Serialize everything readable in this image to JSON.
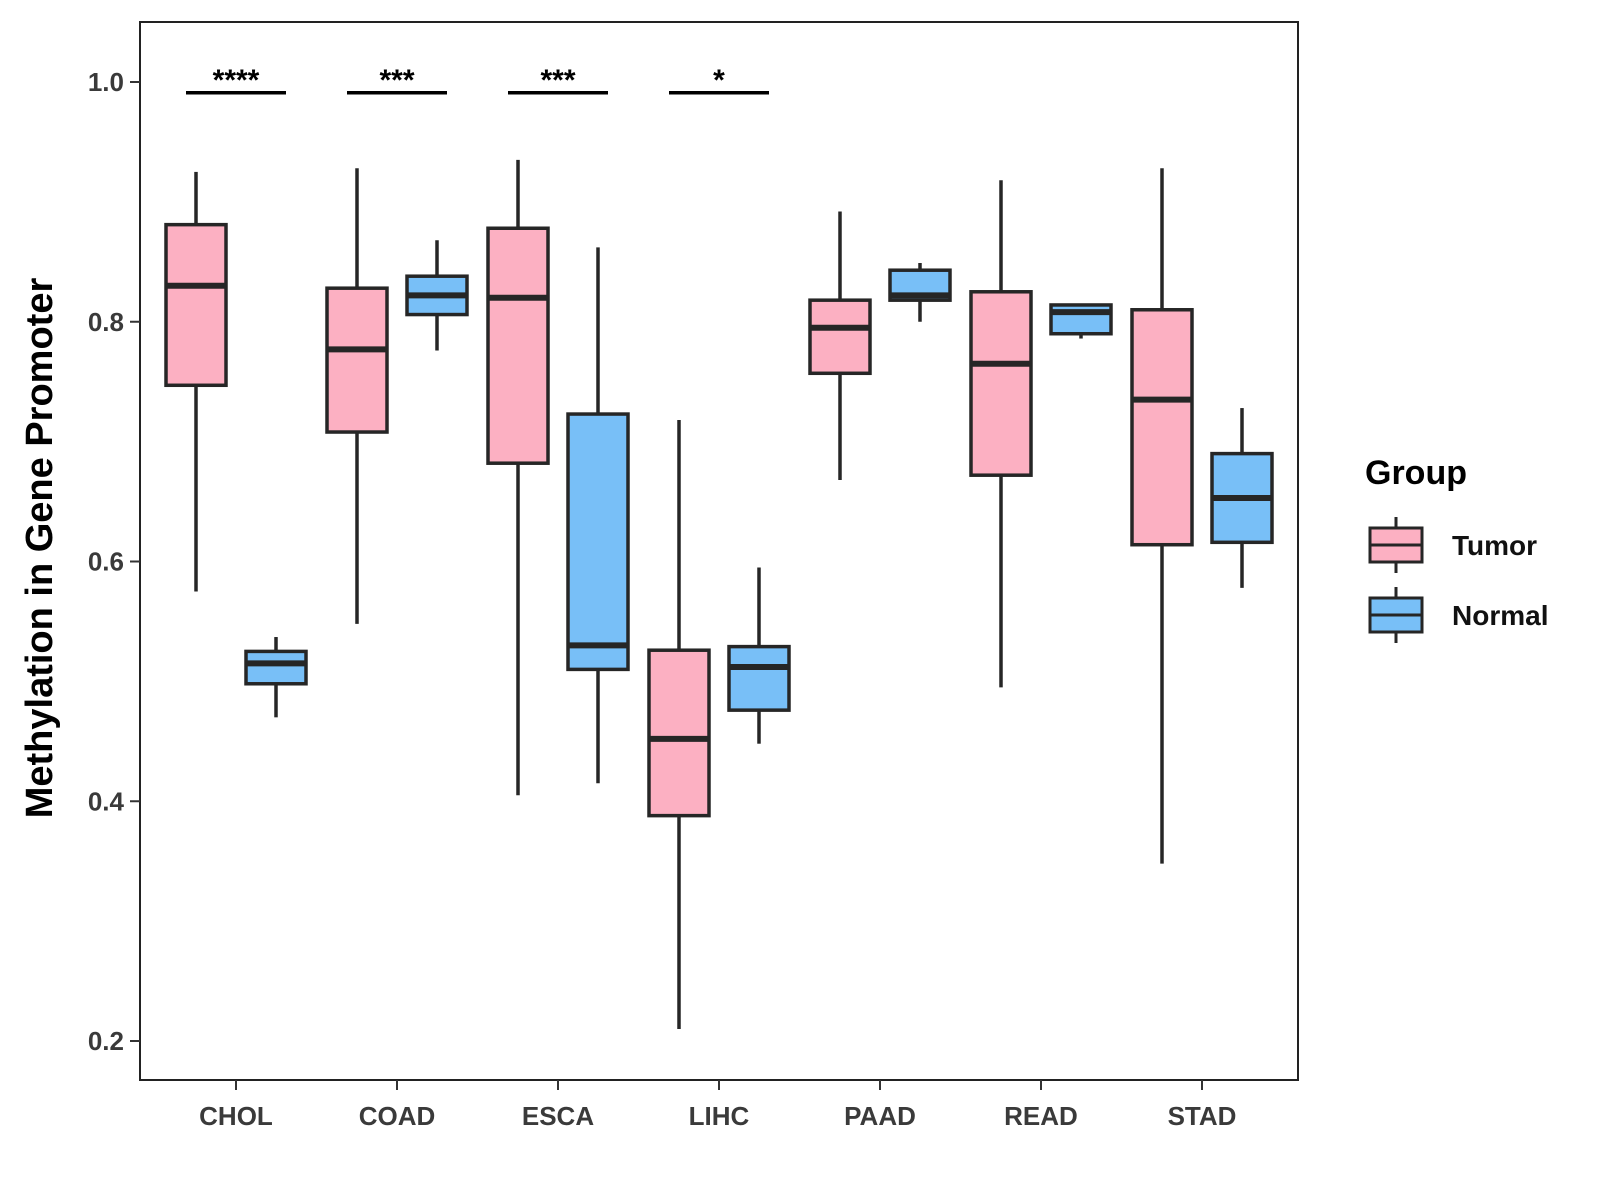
{
  "chart_data": {
    "type": "boxplot",
    "ylabel": "Methylation in Gene Promoter",
    "xlabel": "",
    "ylim": [
      0.17,
      1.05
    ],
    "yticks": [
      0.2,
      0.4,
      0.6,
      0.8,
      1.0
    ],
    "ytick_labels": [
      "0.2",
      "0.4",
      "0.6",
      "0.8",
      "1.0"
    ],
    "categories": [
      "CHOL",
      "COAD",
      "ESCA",
      "LIHC",
      "PAAD",
      "READ",
      "STAD"
    ],
    "legend": {
      "title": "Group",
      "position": "right",
      "entries": [
        "Tumor",
        "Normal"
      ]
    },
    "colors": {
      "Tumor": "#fcb0c2",
      "Normal": "#78bff7",
      "outline": "#262626"
    },
    "series": [
      {
        "name": "Tumor",
        "boxes": [
          {
            "category": "CHOL",
            "min": 0.575,
            "q1": 0.747,
            "median": 0.83,
            "q3": 0.881,
            "max": 0.925
          },
          {
            "category": "COAD",
            "min": 0.548,
            "q1": 0.708,
            "median": 0.777,
            "q3": 0.828,
            "max": 0.928
          },
          {
            "category": "ESCA",
            "min": 0.405,
            "q1": 0.682,
            "median": 0.82,
            "q3": 0.878,
            "max": 0.935
          },
          {
            "category": "LIHC",
            "min": 0.21,
            "q1": 0.388,
            "median": 0.452,
            "q3": 0.526,
            "max": 0.718
          },
          {
            "category": "PAAD",
            "min": 0.668,
            "q1": 0.757,
            "median": 0.795,
            "q3": 0.818,
            "max": 0.892
          },
          {
            "category": "READ",
            "min": 0.495,
            "q1": 0.672,
            "median": 0.765,
            "q3": 0.825,
            "max": 0.918
          },
          {
            "category": "STAD",
            "min": 0.348,
            "q1": 0.614,
            "median": 0.735,
            "q3": 0.81,
            "max": 0.928
          }
        ]
      },
      {
        "name": "Normal",
        "boxes": [
          {
            "category": "CHOL",
            "min": 0.47,
            "q1": 0.498,
            "median": 0.515,
            "q3": 0.525,
            "max": 0.537
          },
          {
            "category": "COAD",
            "min": 0.776,
            "q1": 0.806,
            "median": 0.822,
            "q3": 0.838,
            "max": 0.868
          },
          {
            "category": "ESCA",
            "min": 0.415,
            "q1": 0.51,
            "median": 0.53,
            "q3": 0.723,
            "max": 0.862
          },
          {
            "category": "LIHC",
            "min": 0.448,
            "q1": 0.476,
            "median": 0.512,
            "q3": 0.529,
            "max": 0.595
          },
          {
            "category": "PAAD",
            "min": 0.8,
            "q1": 0.818,
            "median": 0.822,
            "q3": 0.843,
            "max": 0.849
          },
          {
            "category": "READ",
            "min": 0.786,
            "q1": 0.79,
            "median": 0.808,
            "q3": 0.814,
            "max": 0.814
          },
          {
            "category": "STAD",
            "min": 0.578,
            "q1": 0.616,
            "median": 0.653,
            "q3": 0.69,
            "max": 0.728
          }
        ]
      }
    ],
    "significance": [
      {
        "category": "CHOL",
        "label": "****",
        "y": 0.991
      },
      {
        "category": "COAD",
        "label": "***",
        "y": 0.991
      },
      {
        "category": "ESCA",
        "label": "***",
        "y": 0.991
      },
      {
        "category": "LIHC",
        "label": "*",
        "y": 0.991
      }
    ]
  }
}
